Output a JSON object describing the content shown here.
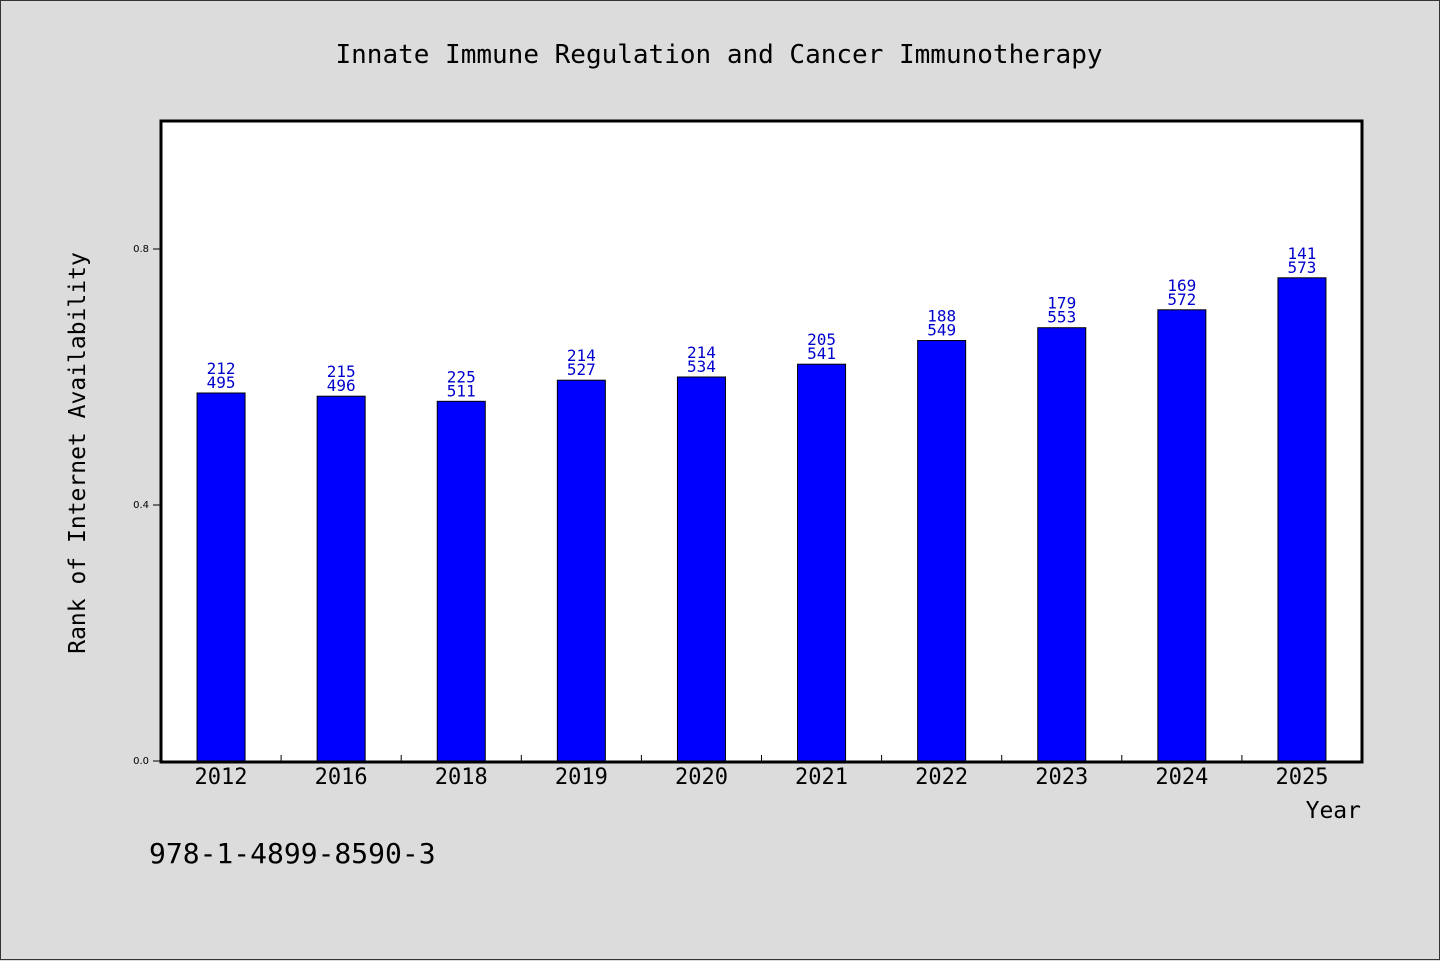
{
  "chart_data": {
    "type": "bar",
    "title": "Innate Immune Regulation and Cancer Immunotherapy",
    "xlabel": "Year",
    "ylabel": "Rank of Internet Availability",
    "categories": [
      "2012",
      "2016",
      "2018",
      "2019",
      "2020",
      "2021",
      "2022",
      "2023",
      "2024",
      "2025"
    ],
    "values": [
      0.575,
      0.57,
      0.562,
      0.595,
      0.6,
      0.62,
      0.657,
      0.677,
      0.705,
      0.755
    ],
    "labels_top": [
      "212",
      "215",
      "225",
      "214",
      "214",
      "205",
      "188",
      "179",
      "169",
      "141"
    ],
    "labels_bottom": [
      "495",
      "496",
      "511",
      "527",
      "534",
      "541",
      "549",
      "553",
      "572",
      "573"
    ],
    "ylim": [
      0,
      1.0
    ],
    "yticks": [
      0.0,
      0.4,
      0.8
    ],
    "ytick_labels": [
      "0.0",
      "0.4",
      "0.8"
    ],
    "grid": false,
    "colors": {
      "bar": "#0000ff",
      "bar_label": "#0000cc",
      "axis": "#000000",
      "plot_bg": "#ffffff",
      "page_bg": "#dcdcdc"
    }
  },
  "footer": {
    "isbn": "978-1-4899-8590-3"
  }
}
